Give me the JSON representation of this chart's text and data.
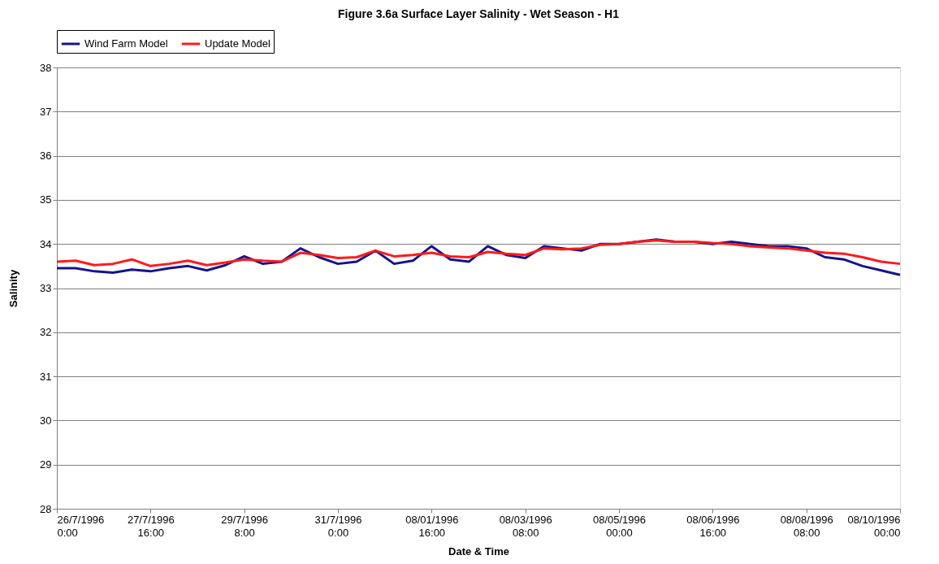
{
  "chart_data": {
    "type": "line",
    "title": "Figure 3.6a  Surface Layer Salinity - Wet Season - H1",
    "xlabel": "Date & Time",
    "ylabel": "Salinity",
    "x": [
      "1996-07-26T00:00",
      "1996-07-26T08:00",
      "1996-07-26T16:00",
      "1996-07-27T00:00",
      "1996-07-27T08:00",
      "1996-07-27T16:00",
      "1996-07-28T00:00",
      "1996-07-28T08:00",
      "1996-07-28T16:00",
      "1996-07-29T00:00",
      "1996-07-29T08:00",
      "1996-07-29T16:00",
      "1996-07-30T00:00",
      "1996-07-30T08:00",
      "1996-07-30T16:00",
      "1996-07-31T00:00",
      "1996-07-31T08:00",
      "1996-07-31T16:00",
      "1996-08-01T00:00",
      "1996-08-01T08:00",
      "1996-08-01T16:00",
      "1996-08-02T00:00",
      "1996-08-02T08:00",
      "1996-08-02T16:00",
      "1996-08-03T00:00",
      "1996-08-03T08:00",
      "1996-08-03T16:00",
      "1996-08-04T00:00",
      "1996-08-04T08:00",
      "1996-08-04T16:00",
      "1996-08-05T00:00",
      "1996-08-05T08:00",
      "1996-08-05T16:00",
      "1996-08-06T00:00",
      "1996-08-06T08:00",
      "1996-08-06T16:00",
      "1996-08-07T00:00",
      "1996-08-07T08:00",
      "1996-08-07T16:00",
      "1996-08-08T00:00",
      "1996-08-08T08:00",
      "1996-08-08T16:00",
      "1996-08-09T00:00",
      "1996-08-09T08:00",
      "1996-08-09T16:00",
      "1996-08-10T00:00"
    ],
    "series": [
      {
        "name": "Wind Farm Model",
        "color": "#14148c",
        "values": [
          33.45,
          33.45,
          33.38,
          33.35,
          33.42,
          33.38,
          33.45,
          33.5,
          33.4,
          33.52,
          33.72,
          33.55,
          33.6,
          33.9,
          33.7,
          33.55,
          33.6,
          33.85,
          33.55,
          33.62,
          33.95,
          33.65,
          33.6,
          33.95,
          33.75,
          33.68,
          33.95,
          33.9,
          33.85,
          34.0,
          34.0,
          34.05,
          34.1,
          34.05,
          34.05,
          34.0,
          34.05,
          34.0,
          33.95,
          33.95,
          33.9,
          33.7,
          33.65,
          33.5,
          33.4,
          33.3
        ]
      },
      {
        "name": "Update Model",
        "color": "#ff1a1a",
        "values": [
          33.6,
          33.62,
          33.52,
          33.55,
          33.65,
          33.5,
          33.55,
          33.62,
          33.52,
          33.58,
          33.65,
          33.62,
          33.6,
          33.8,
          33.75,
          33.68,
          33.7,
          33.85,
          33.72,
          33.75,
          33.8,
          33.72,
          33.7,
          33.82,
          33.78,
          33.75,
          33.9,
          33.88,
          33.9,
          33.98,
          34.0,
          34.05,
          34.08,
          34.05,
          34.05,
          34.02,
          34.0,
          33.95,
          33.92,
          33.9,
          33.85,
          33.8,
          33.78,
          33.7,
          33.6,
          33.55
        ]
      }
    ],
    "xlim": [
      "1996-07-26T00:00",
      "1996-08-10T00:00"
    ],
    "xticks": [
      {
        "value": "1996-07-26T00:00",
        "label": "26/7/1996\n0:00"
      },
      {
        "value": "1996-07-27T16:00",
        "label": "27/7/1996\n16:00"
      },
      {
        "value": "1996-07-29T08:00",
        "label": "29/7/1996\n8:00"
      },
      {
        "value": "1996-07-31T00:00",
        "label": "31/7/1996\n0:00"
      },
      {
        "value": "1996-08-01T16:00",
        "label": "08/01/1996\n16:00"
      },
      {
        "value": "1996-08-03T08:00",
        "label": "08/03/1996\n08:00"
      },
      {
        "value": "1996-08-05T00:00",
        "label": "08/05/1996\n00:00"
      },
      {
        "value": "1996-08-06T16:00",
        "label": "08/06/1996\n16:00"
      },
      {
        "value": "1996-08-08T08:00",
        "label": "08/08/1996\n08:00"
      },
      {
        "value": "1996-08-10T00:00",
        "label": "08/10/1996\n00:00"
      }
    ],
    "ylim": [
      28,
      38
    ],
    "yticks": [
      28,
      29,
      30,
      31,
      32,
      33,
      34,
      35,
      36,
      37,
      38
    ],
    "grid": "y",
    "legend": "top",
    "marker": "none",
    "line_style": "solid"
  }
}
